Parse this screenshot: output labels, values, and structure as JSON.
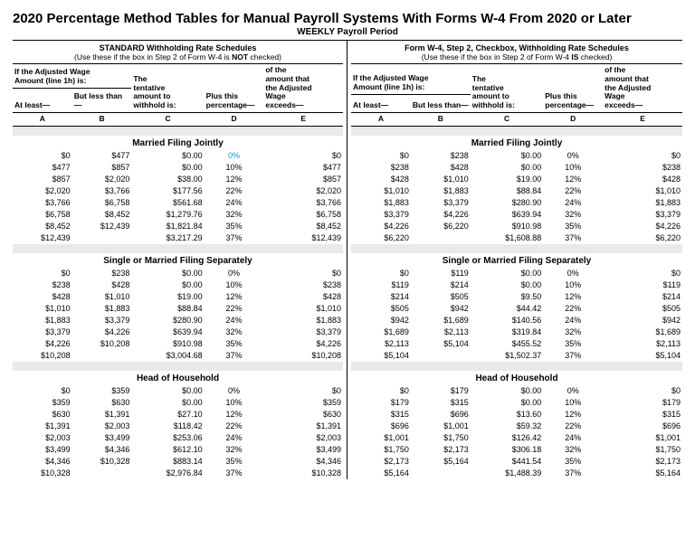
{
  "title": "2020 Percentage Method Tables for Manual Payroll Systems With Forms W-4 From 2020 or Later",
  "subtitle": "WEEKLY Payroll Period",
  "left": {
    "heading1": "STANDARD Withholding Rate Schedules",
    "heading2_a": "(Use these if the box in Step 2 of Form W-4 is ",
    "heading2_b": "NOT",
    "heading2_c": " checked)"
  },
  "right": {
    "heading1": "Form W-4, Step 2, Checkbox, Withholding Rate Schedules",
    "heading2_a": "(Use these if the box in Step 2 of Form W-4 ",
    "heading2_b": "IS",
    "heading2_c": " checked)"
  },
  "hdr": {
    "adj1": "If the Adjusted Wage",
    "adj2": "Amount (line 1h) is:",
    "atleast": "At least—",
    "butless": "But less than—",
    "tent1": "The",
    "tent2": "tentative",
    "tent3": "amount to",
    "tent4": "withhold is:",
    "plus1": "Plus this",
    "plus2": "percentage—",
    "exc1": "of the",
    "exc2": "amount that",
    "exc3": "the Adjusted",
    "exc4": "Wage",
    "exc5": "exceeds—",
    "A": "A",
    "B": "B",
    "C": "C",
    "D": "D",
    "E": "E"
  },
  "sections": {
    "mfj": "Married Filing Jointly",
    "single": "Single or Married Filing Separately",
    "hoh": "Head of Household"
  },
  "tables": {
    "left_mfj": [
      [
        "$0",
        "$477",
        "$0.00",
        "0%",
        "$0"
      ],
      [
        "$477",
        "$857",
        "$0.00",
        "10%",
        "$477"
      ],
      [
        "$857",
        "$2,020",
        "$38.00",
        "12%",
        "$857"
      ],
      [
        "$2,020",
        "$3,766",
        "$177.56",
        "22%",
        "$2,020"
      ],
      [
        "$3,766",
        "$6,758",
        "$561.68",
        "24%",
        "$3,766"
      ],
      [
        "$6,758",
        "$8,452",
        "$1,279.76",
        "32%",
        "$6,758"
      ],
      [
        "$8,452",
        "$12,439",
        "$1,821.84",
        "35%",
        "$8,452"
      ],
      [
        "$12,439",
        "",
        "$3,217.29",
        "37%",
        "$12,439"
      ]
    ],
    "right_mfj": [
      [
        "$0",
        "$238",
        "$0.00",
        "0%",
        "$0"
      ],
      [
        "$238",
        "$428",
        "$0.00",
        "10%",
        "$238"
      ],
      [
        "$428",
        "$1,010",
        "$19.00",
        "12%",
        "$428"
      ],
      [
        "$1,010",
        "$1,883",
        "$88.84",
        "22%",
        "$1,010"
      ],
      [
        "$1,883",
        "$3,379",
        "$280.90",
        "24%",
        "$1,883"
      ],
      [
        "$3,379",
        "$4,226",
        "$639.94",
        "32%",
        "$3,379"
      ],
      [
        "$4,226",
        "$6,220",
        "$910.98",
        "35%",
        "$4,226"
      ],
      [
        "$6,220",
        "",
        "$1,608.88",
        "37%",
        "$6,220"
      ]
    ],
    "left_single": [
      [
        "$0",
        "$238",
        "$0.00",
        "0%",
        "$0"
      ],
      [
        "$238",
        "$428",
        "$0.00",
        "10%",
        "$238"
      ],
      [
        "$428",
        "$1,010",
        "$19.00",
        "12%",
        "$428"
      ],
      [
        "$1,010",
        "$1,883",
        "$88.84",
        "22%",
        "$1,010"
      ],
      [
        "$1,883",
        "$3,379",
        "$280.90",
        "24%",
        "$1,883"
      ],
      [
        "$3,379",
        "$4,226",
        "$639.94",
        "32%",
        "$3,379"
      ],
      [
        "$4,226",
        "$10,208",
        "$910.98",
        "35%",
        "$4,226"
      ],
      [
        "$10,208",
        "",
        "$3,004.68",
        "37%",
        "$10,208"
      ]
    ],
    "right_single": [
      [
        "$0",
        "$119",
        "$0.00",
        "0%",
        "$0"
      ],
      [
        "$119",
        "$214",
        "$0.00",
        "10%",
        "$119"
      ],
      [
        "$214",
        "$505",
        "$9.50",
        "12%",
        "$214"
      ],
      [
        "$505",
        "$942",
        "$44.42",
        "22%",
        "$505"
      ],
      [
        "$942",
        "$1,689",
        "$140.56",
        "24%",
        "$942"
      ],
      [
        "$1,689",
        "$2,113",
        "$319.84",
        "32%",
        "$1,689"
      ],
      [
        "$2,113",
        "$5,104",
        "$455.52",
        "35%",
        "$2,113"
      ],
      [
        "$5,104",
        "",
        "$1,502.37",
        "37%",
        "$5,104"
      ]
    ],
    "left_hoh": [
      [
        "$0",
        "$359",
        "$0.00",
        "0%",
        "$0"
      ],
      [
        "$359",
        "$630",
        "$0.00",
        "10%",
        "$359"
      ],
      [
        "$630",
        "$1,391",
        "$27.10",
        "12%",
        "$630"
      ],
      [
        "$1,391",
        "$2,003",
        "$118.42",
        "22%",
        "$1,391"
      ],
      [
        "$2,003",
        "$3,499",
        "$253.06",
        "24%",
        "$2,003"
      ],
      [
        "$3,499",
        "$4,346",
        "$612.10",
        "32%",
        "$3,499"
      ],
      [
        "$4,346",
        "$10,328",
        "$883.14",
        "35%",
        "$4,346"
      ],
      [
        "$10,328",
        "",
        "$2,976.84",
        "37%",
        "$10,328"
      ]
    ],
    "right_hoh": [
      [
        "$0",
        "$179",
        "$0.00",
        "0%",
        "$0"
      ],
      [
        "$179",
        "$315",
        "$0.00",
        "10%",
        "$179"
      ],
      [
        "$315",
        "$696",
        "$13.60",
        "12%",
        "$315"
      ],
      [
        "$696",
        "$1,001",
        "$59.32",
        "22%",
        "$696"
      ],
      [
        "$1,001",
        "$1,750",
        "$126.42",
        "24%",
        "$1,001"
      ],
      [
        "$1,750",
        "$2,173",
        "$306.18",
        "32%",
        "$1,750"
      ],
      [
        "$2,173",
        "$5,164",
        "$441.54",
        "35%",
        "$2,173"
      ],
      [
        "$5,164",
        "",
        "$1,488.39",
        "37%",
        "$5,164"
      ]
    ]
  },
  "col_widths_pct": [
    18,
    18,
    22,
    18,
    24
  ],
  "highlight": {
    "table": "left_mfj",
    "row": 0,
    "col": 3
  }
}
